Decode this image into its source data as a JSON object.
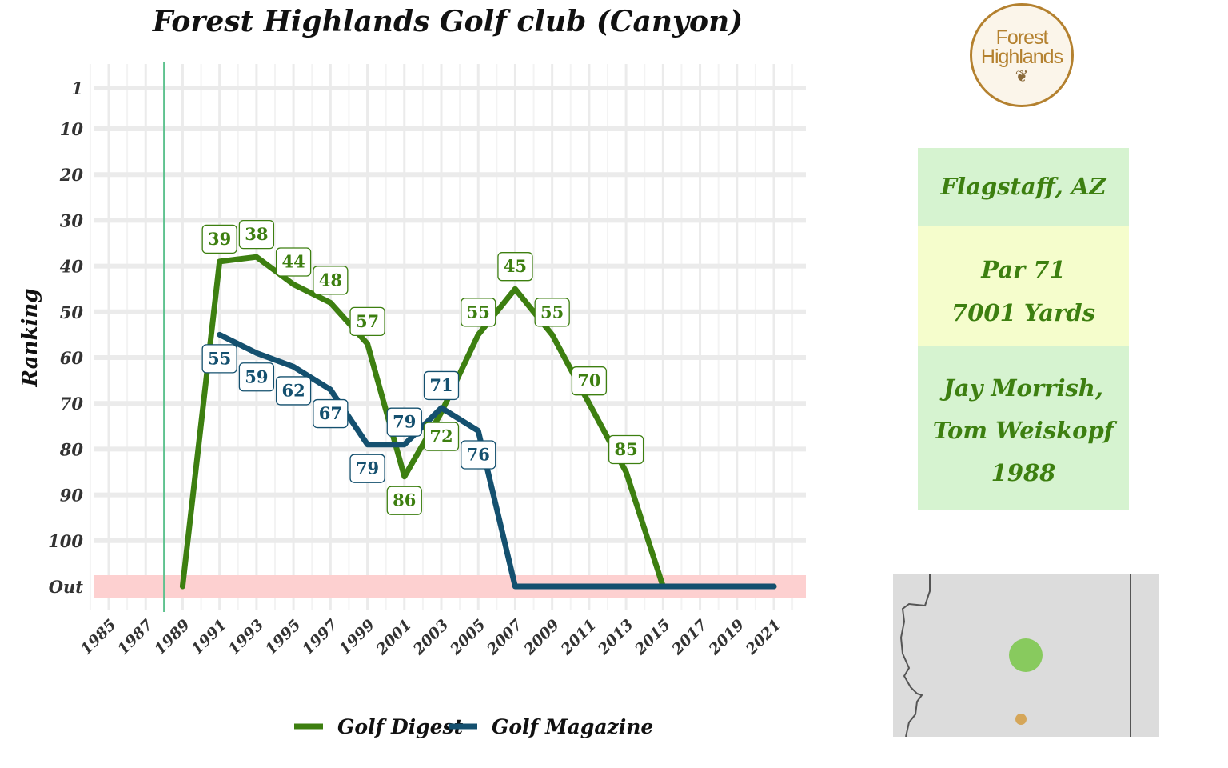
{
  "title": "Forest Highlands Golf club (Canyon)",
  "logo": {
    "line1": "Forest",
    "line2": "Highlands",
    "icon": "pinecone-icon",
    "color": "#b4812f"
  },
  "info": {
    "location": "Flagstaff, AZ",
    "par": "Par 71",
    "yards": "7001 Yards",
    "designer_line1": "Jay Morrish,",
    "designer_line2": "Tom Weiskopf",
    "year_built": "1988"
  },
  "chart_data": {
    "type": "line",
    "title": "Forest Highlands Golf club (Canyon)",
    "ylabel": "Ranking",
    "xlabel": "",
    "y_tick_labels": [
      "1",
      "10",
      "20",
      "30",
      "40",
      "50",
      "60",
      "70",
      "80",
      "90",
      "100",
      "Out"
    ],
    "y_ticks": [
      1,
      10,
      20,
      30,
      40,
      50,
      60,
      70,
      80,
      90,
      100,
      110
    ],
    "y_reversed": true,
    "out_value": 110,
    "out_label": "Out",
    "x_ticks": [
      1985,
      1987,
      1989,
      1991,
      1993,
      1995,
      1997,
      1999,
      2001,
      2003,
      2005,
      2007,
      2009,
      2011,
      2013,
      2015,
      2017,
      2019,
      2021
    ],
    "xlim": [
      1984,
      2022.6
    ],
    "opened_year": 1988,
    "grid": true,
    "legend_position": "bottom",
    "series": [
      {
        "name": "Golf Digest",
        "color": "#3d7f10",
        "x": [
          1989,
          1991,
          1993,
          1995,
          1997,
          1999,
          2001,
          2003,
          2005,
          2007,
          2009,
          2011,
          2013,
          2015,
          2017,
          2019,
          2021
        ],
        "y": [
          110,
          39,
          38,
          44,
          48,
          57,
          86,
          72,
          55,
          45,
          55,
          70,
          85,
          110,
          110,
          110,
          110
        ],
        "labels": [
          null,
          "39",
          "38",
          "44",
          "48",
          "57",
          "86",
          "72",
          "55",
          "45",
          "55",
          "70",
          "85",
          null,
          null,
          null,
          null
        ],
        "label_pos": [
          null,
          "above",
          "above",
          "above",
          "above",
          "above",
          "below",
          "below",
          "above",
          "above",
          "above",
          "above",
          "above",
          null,
          null,
          null,
          null
        ]
      },
      {
        "name": "Golf Magazine",
        "color": "#14506f",
        "x": [
          1991,
          1993,
          1995,
          1997,
          1999,
          2001,
          2003,
          2005,
          2007,
          2009,
          2011,
          2013,
          2015,
          2017,
          2019,
          2021
        ],
        "y": [
          55,
          59,
          62,
          67,
          79,
          79,
          71,
          76,
          110,
          110,
          110,
          110,
          110,
          110,
          110,
          110
        ],
        "labels": [
          "55",
          "59",
          "62",
          "67",
          "79",
          "79",
          "71",
          "76",
          null,
          null,
          null,
          null,
          null,
          null,
          null,
          null
        ],
        "label_pos": [
          "below",
          "below",
          "below",
          "below",
          "below",
          "above",
          "above",
          "below",
          null,
          null,
          null,
          null,
          null,
          null,
          null,
          null
        ]
      }
    ]
  },
  "map": {
    "background": "#dcdcdc",
    "marker_large_color": "#7ec850",
    "marker_small_color": "#d4a04a"
  }
}
